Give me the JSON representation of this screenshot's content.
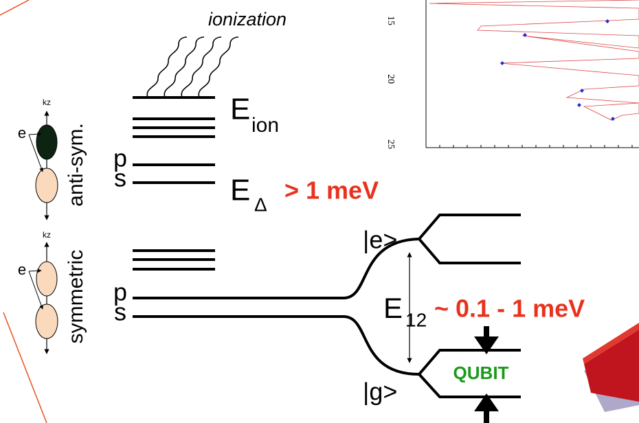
{
  "diagram": {
    "ionization": "ionization",
    "e_ion": {
      "symbol": "E",
      "sub": "ion"
    },
    "e_delta": {
      "symbol": "E",
      "sub": "Δ",
      "value": "> 1 meV"
    },
    "e_12": {
      "symbol": "E",
      "sub": "12",
      "value": "~ 0.1 - 1 meV"
    },
    "state_e": "|e>",
    "state_g": "|g>",
    "qubit": "QUBIT",
    "upper": {
      "p": "p",
      "s": "s",
      "label": "anti-sym.",
      "axis": "kz",
      "electron": "e"
    },
    "lower": {
      "p": "p",
      "s": "s",
      "label": "symmetric",
      "axis": "kz",
      "electron": "e"
    },
    "inset_ticks": [
      "15",
      "20",
      "25"
    ]
  }
}
